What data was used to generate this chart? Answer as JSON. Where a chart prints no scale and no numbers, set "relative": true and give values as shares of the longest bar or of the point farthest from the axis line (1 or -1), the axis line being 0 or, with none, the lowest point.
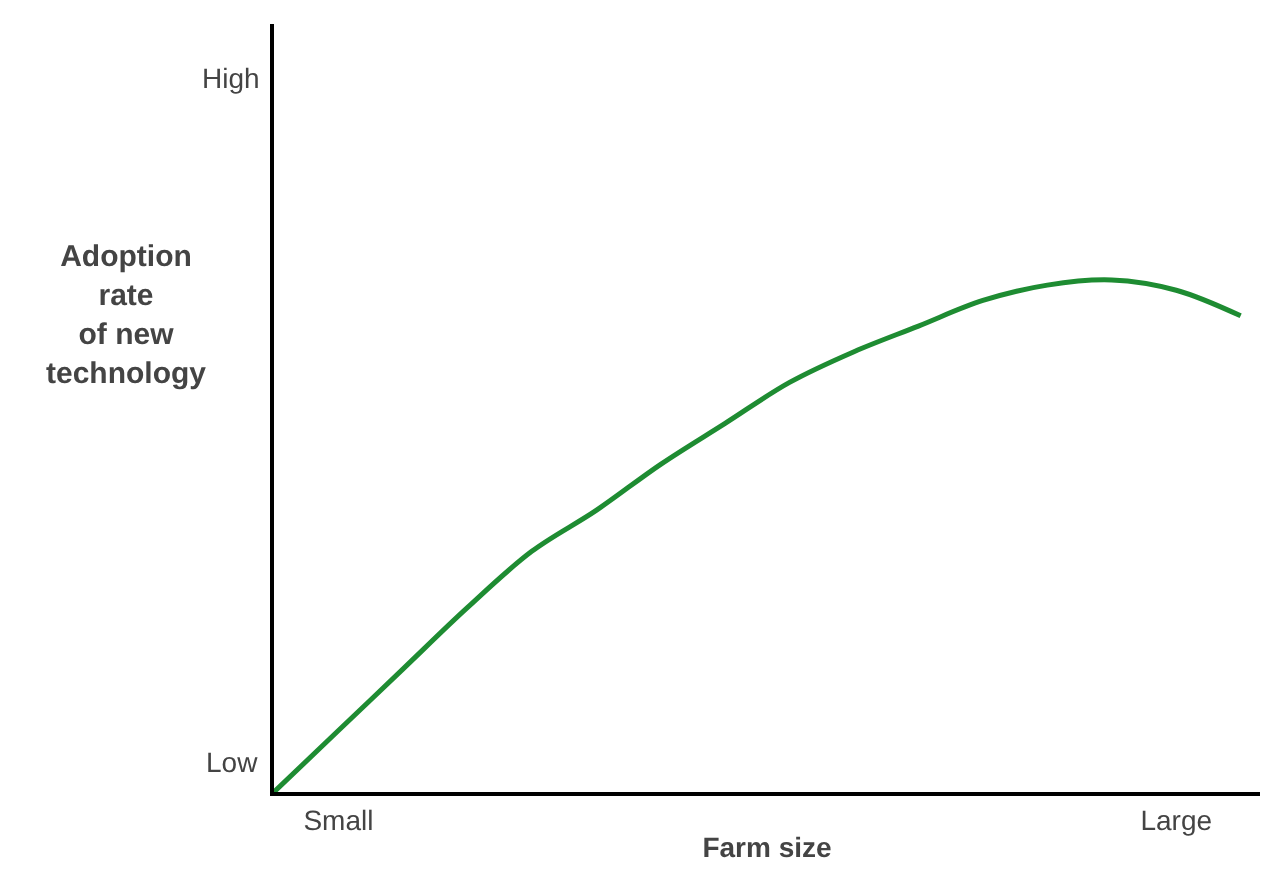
{
  "chart_data": {
    "type": "line",
    "relative": true,
    "xlabel": "Farm size",
    "ylabel": "Adoption\nrate\nof new\ntechnology",
    "categories": [
      null,
      "Small",
      null,
      null,
      null,
      null,
      null,
      null,
      null,
      null,
      null,
      null,
      null,
      null,
      "Large",
      null
    ],
    "series": [
      {
        "color": "#1e8c32",
        "values": [
          0,
          0.12,
          0.24,
          0.36,
          0.47,
          0.55,
          0.64,
          0.72,
          0.8,
          0.86,
          0.91,
          0.96,
          0.99,
          1,
          0.98,
          0.93
        ]
      }
    ],
    "annotations": [
      "Low",
      "High"
    ],
    "line_style": "solid"
  }
}
